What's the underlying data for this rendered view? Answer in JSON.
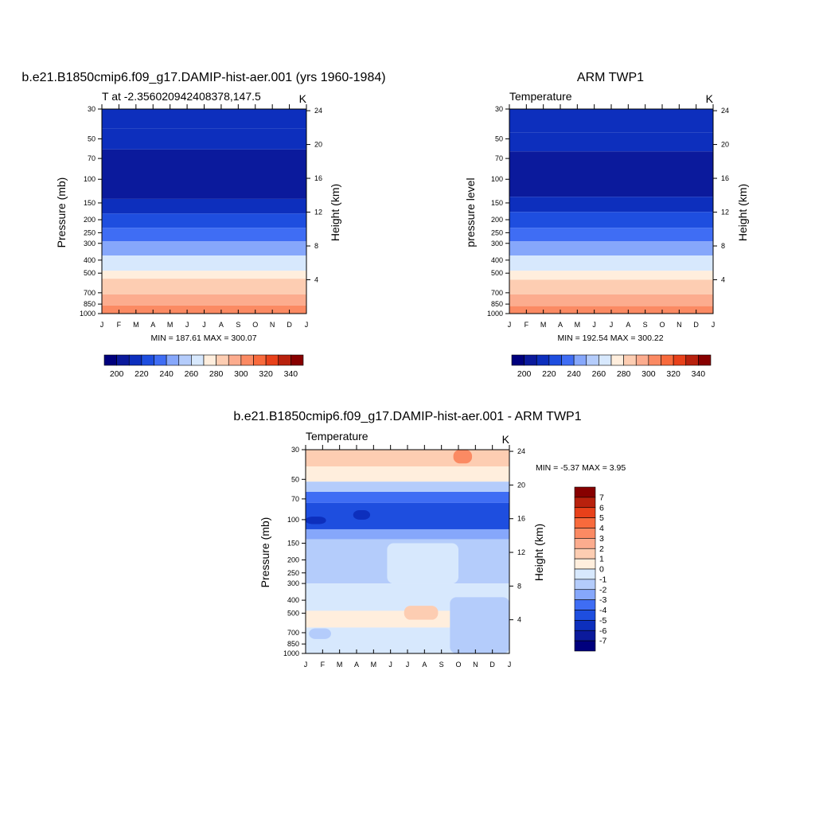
{
  "colors": {
    "abs_levels": [
      "#00007d",
      "#0b1a9c",
      "#0d2fbd",
      "#1e4edf",
      "#3f6df4",
      "#86a7fb",
      "#b4ccfb",
      "#d7e8fd",
      "#ffeedd",
      "#fdcdb2",
      "#fcac8e",
      "#fb8a63",
      "#f86a3c",
      "#e8411a",
      "#b8210d",
      "#870000"
    ],
    "diff_levels": [
      "#00007d",
      "#0b1a9c",
      "#0d2fbd",
      "#1e4edf",
      "#3f6df4",
      "#86a7fb",
      "#b4ccfb",
      "#d7e8fd",
      "#ffeedd",
      "#fdcdb2",
      "#fcac8e",
      "#fb8a63",
      "#f86a3c",
      "#e8411a",
      "#b8210d",
      "#870000"
    ]
  },
  "chart_data": [
    {
      "type": "heatmap",
      "id": "model",
      "title": "b.e21.B1850cmip6.f09_g17.DAMIP-hist-aer.001 (yrs 1960-1984)",
      "left_subtitle": "T at -2.356020942408378,147.5",
      "right_subtitle": "K",
      "ylabel": "Pressure (mb)",
      "ylabel_right": "Height (km)",
      "x_ticks": [
        "J",
        "F",
        "M",
        "A",
        "M",
        "J",
        "J",
        "A",
        "S",
        "O",
        "N",
        "D",
        "J"
      ],
      "y_ticks": [
        "30",
        "50",
        "70",
        "100",
        "150",
        "200",
        "250",
        "300",
        "400",
        "500",
        "700",
        "850",
        "1000"
      ],
      "y_ticks_right": [
        "24",
        "20",
        "16",
        "12",
        "8",
        "4"
      ],
      "stats": "MIN = 187.61 MAX = 300.07",
      "colorbar_labels": [
        "200",
        "220",
        "240",
        "260",
        "280",
        "300",
        "320",
        "340"
      ],
      "ylim": [
        1000,
        30
      ],
      "levels": [
        30,
        50,
        70,
        100,
        150,
        200,
        250,
        300,
        400,
        500,
        700,
        850,
        1000
      ],
      "bands": [
        {
          "top": 30,
          "bottom": 42,
          "value": 205
        },
        {
          "top": 42,
          "bottom": 60,
          "value": 200
        },
        {
          "top": 60,
          "bottom": 140,
          "value": 190
        },
        {
          "top": 140,
          "bottom": 180,
          "value": 200
        },
        {
          "top": 180,
          "bottom": 230,
          "value": 210
        },
        {
          "top": 230,
          "bottom": 290,
          "value": 220
        },
        {
          "top": 290,
          "bottom": 370,
          "value": 230
        },
        {
          "top": 370,
          "bottom": 480,
          "value": 250
        },
        {
          "top": 480,
          "bottom": 550,
          "value": 265
        },
        {
          "top": 550,
          "bottom": 720,
          "value": 275
        },
        {
          "top": 720,
          "bottom": 870,
          "value": 285
        },
        {
          "top": 870,
          "bottom": 1000,
          "value": 295
        }
      ]
    },
    {
      "type": "heatmap",
      "id": "obs",
      "title": "ARM TWP1",
      "left_subtitle": "Temperature",
      "right_subtitle": "K",
      "ylabel": "pressure level",
      "ylabel_right": "Height (km)",
      "x_ticks": [
        "J",
        "F",
        "M",
        "A",
        "M",
        "J",
        "J",
        "A",
        "S",
        "O",
        "N",
        "D",
        "J"
      ],
      "y_ticks": [
        "30",
        "50",
        "70",
        "100",
        "150",
        "200",
        "250",
        "300",
        "400",
        "500",
        "700",
        "850",
        "1000"
      ],
      "y_ticks_right": [
        "24",
        "20",
        "16",
        "12",
        "8",
        "4"
      ],
      "stats": "MIN = 192.54 MAX = 300.22",
      "colorbar_labels": [
        "200",
        "220",
        "240",
        "260",
        "280",
        "300",
        "320",
        "340"
      ],
      "ylim": [
        1000,
        30
      ],
      "bands": [
        {
          "top": 30,
          "bottom": 45,
          "value": 205
        },
        {
          "top": 45,
          "bottom": 62,
          "value": 200
        },
        {
          "top": 62,
          "bottom": 135,
          "value": 190
        },
        {
          "top": 135,
          "bottom": 175,
          "value": 200
        },
        {
          "top": 175,
          "bottom": 230,
          "value": 210
        },
        {
          "top": 230,
          "bottom": 290,
          "value": 220
        },
        {
          "top": 290,
          "bottom": 370,
          "value": 230
        },
        {
          "top": 370,
          "bottom": 480,
          "value": 250
        },
        {
          "top": 480,
          "bottom": 560,
          "value": 265
        },
        {
          "top": 560,
          "bottom": 720,
          "value": 275
        },
        {
          "top": 720,
          "bottom": 880,
          "value": 285
        },
        {
          "top": 880,
          "bottom": 1000,
          "value": 295
        }
      ]
    },
    {
      "type": "heatmap",
      "id": "diff",
      "title": "b.e21.B1850cmip6.f09_g17.DAMIP-hist-aer.001 - ARM TWP1",
      "left_subtitle": "Temperature",
      "right_subtitle": "K",
      "ylabel": "Pressure (mb)",
      "ylabel_right": "Height (km)",
      "x_ticks": [
        "J",
        "F",
        "M",
        "A",
        "M",
        "J",
        "J",
        "A",
        "S",
        "O",
        "N",
        "D",
        "J"
      ],
      "y_ticks": [
        "30",
        "50",
        "70",
        "100",
        "150",
        "200",
        "250",
        "300",
        "400",
        "500",
        "700",
        "850",
        "1000"
      ],
      "y_ticks_right": [
        "24",
        "20",
        "16",
        "12",
        "8",
        "4"
      ],
      "stats": "MIN =  -5.37 MAX =   3.95",
      "colorbar_labels": [
        "7",
        "6",
        "5",
        "4",
        "3",
        "2",
        "1",
        "0",
        "-1",
        "-2",
        "-3",
        "-4",
        "-5",
        "-6",
        "-7"
      ],
      "ylim": [
        1000,
        30
      ],
      "bands": [
        {
          "top": 30,
          "bottom": 40,
          "value": 2
        },
        {
          "top": 40,
          "bottom": 52,
          "value": 1
        },
        {
          "top": 52,
          "bottom": 62,
          "value": -1
        },
        {
          "top": 62,
          "bottom": 75,
          "value": -3
        },
        {
          "top": 75,
          "bottom": 118,
          "value": -4
        },
        {
          "top": 118,
          "bottom": 140,
          "value": -2
        },
        {
          "top": 140,
          "bottom": 300,
          "value": -1
        },
        {
          "top": 300,
          "bottom": 480,
          "value": 0
        },
        {
          "top": 480,
          "bottom": 640,
          "value": 1
        },
        {
          "top": 640,
          "bottom": 1000,
          "value": 0
        }
      ],
      "patches": [
        {
          "x0": 8.7,
          "x1": 9.8,
          "top": 30,
          "bottom": 38,
          "value": 4
        },
        {
          "x0": 4.8,
          "x1": 9.0,
          "top": 150,
          "bottom": 300,
          "value": 0
        },
        {
          "x0": 5.8,
          "x1": 7.8,
          "top": 440,
          "bottom": 560,
          "value": 2
        },
        {
          "x0": 2.8,
          "x1": 3.8,
          "top": 85,
          "bottom": 100,
          "value": -5
        },
        {
          "x0": 0.0,
          "x1": 1.2,
          "top": 95,
          "bottom": 108,
          "value": -5
        },
        {
          "x0": 0.2,
          "x1": 1.5,
          "top": 650,
          "bottom": 780,
          "value": -1
        },
        {
          "x0": 8.5,
          "x1": 12.0,
          "top": 380,
          "bottom": 1000,
          "value": -1
        }
      ]
    }
  ]
}
